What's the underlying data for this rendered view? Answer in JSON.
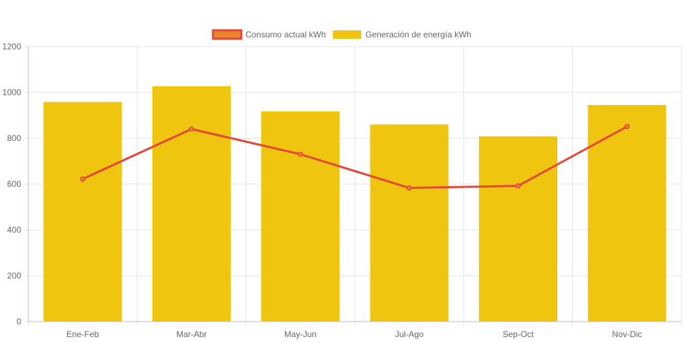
{
  "chart_data": {
    "type": "bar",
    "categories": [
      "Ene-Feb",
      "Mar-Abr",
      "May-Jun",
      "Jul-Ago",
      "Sep-Oct",
      "Nov-Dic"
    ],
    "series": [
      {
        "name": "Consumo actual kWh",
        "type": "line",
        "values": [
          622,
          840,
          730,
          583,
          592,
          851
        ],
        "color": "#e2493a",
        "legend_fill": "#e8842b"
      },
      {
        "name": "Generación de energía kWh",
        "type": "bar",
        "values": [
          958,
          1027,
          917,
          860,
          808,
          945
        ],
        "color": "#f0c50f"
      }
    ],
    "ylim": [
      0,
      1200
    ],
    "yticks": [
      "0",
      "200",
      "400",
      "600",
      "800",
      "1000",
      "1200"
    ],
    "grid": true,
    "legend_position": "top-center"
  }
}
